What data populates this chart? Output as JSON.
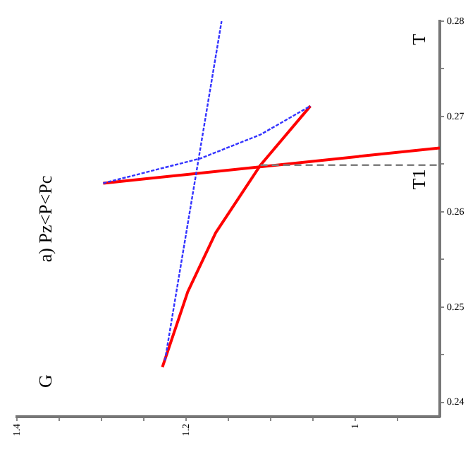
{
  "chart_data": {
    "type": "line",
    "title": "a) Pz<P<Pc",
    "xlim": [
      1.4,
      0.9
    ],
    "ylim": [
      0.2385,
      0.28
    ],
    "xticks": [
      1.4,
      {
        "value": 1.35,
        "label": null
      },
      {
        "value": 1.3,
        "label": null
      },
      {
        "value": 1.25,
        "label": null
      },
      1.2,
      {
        "value": 1.15,
        "label": null
      },
      {
        "value": 1.1,
        "label": null
      },
      {
        "value": 1.05,
        "label": null
      },
      1,
      {
        "value": 0.95,
        "label": null
      }
    ],
    "yticks": [
      0.24,
      {
        "value": 0.245,
        "label": null
      },
      0.25,
      {
        "value": 0.255,
        "label": null
      },
      0.26,
      {
        "value": 0.265,
        "label": null
      },
      0.27,
      {
        "value": 0.275,
        "label": null
      },
      0.28
    ],
    "grid": false,
    "legend": false,
    "marker": "none",
    "series": [
      {
        "color": "#ff0000",
        "line_style": "solid",
        "x": [
          1.228,
          1.198,
          1.165,
          1.112,
          1.053
        ],
        "values": [
          0.2437,
          0.2516,
          0.2578,
          0.2649,
          0.2711
        ]
      },
      {
        "color": "#ff0000",
        "line_style": "solid",
        "x": [
          1.298,
          0.9
        ],
        "values": [
          0.263,
          0.2667
        ]
      },
      {
        "color": "#3333ff",
        "line_style": "dotted",
        "x": [
          1.225,
          1.158
        ],
        "values": [
          0.2444,
          0.28
        ]
      },
      {
        "color": "#3333ff",
        "line_style": "dotted",
        "x": [
          1.298,
          1.183,
          1.112,
          1.053
        ],
        "values": [
          0.263,
          0.2656,
          0.2681,
          0.2711
        ]
      },
      {
        "color": "#808080",
        "line_style": "dashed",
        "x": [
          1.112,
          0.9
        ],
        "values": [
          0.2649,
          0.2649
        ]
      }
    ],
    "annotations": [
      "G",
      "T",
      "T1"
    ]
  }
}
